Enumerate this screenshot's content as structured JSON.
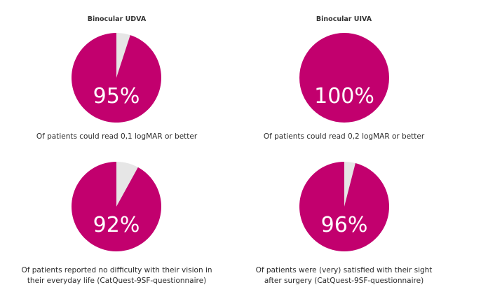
{
  "colors": {
    "filled": "#c2006e",
    "remainder": "#e6e6e6",
    "label": "#ffffff"
  },
  "chart_data": [
    {
      "type": "pie",
      "title": "Binocular UDVA",
      "slices": [
        {
          "value": 95,
          "color": "#c2006e"
        },
        {
          "value": 5,
          "color": "#e6e6e6"
        }
      ],
      "center_label": "95%",
      "caption": [
        "Of patients could read 0,1 logMAR or better"
      ]
    },
    {
      "type": "pie",
      "title": "Binocular UIVA",
      "slices": [
        {
          "value": 100,
          "color": "#c2006e"
        },
        {
          "value": 0,
          "color": "#e6e6e6"
        }
      ],
      "center_label": "100%",
      "caption": [
        "Of patients could read 0,2 logMAR or better"
      ]
    },
    {
      "type": "pie",
      "title": "",
      "slices": [
        {
          "value": 92,
          "color": "#c2006e"
        },
        {
          "value": 8,
          "color": "#e6e6e6"
        }
      ],
      "center_label": "92%",
      "caption": [
        "Of patients reported no difficulty with their vision in",
        "their everyday life (CatQuest-9SF-questionnaire)"
      ]
    },
    {
      "type": "pie",
      "title": "",
      "slices": [
        {
          "value": 96,
          "color": "#c2006e"
        },
        {
          "value": 4,
          "color": "#e6e6e6"
        }
      ],
      "center_label": "96%",
      "caption": [
        "Of patients were (very) satisfied with their sight",
        "after surgery (CatQuest-9SF-questionnaire)"
      ]
    }
  ]
}
